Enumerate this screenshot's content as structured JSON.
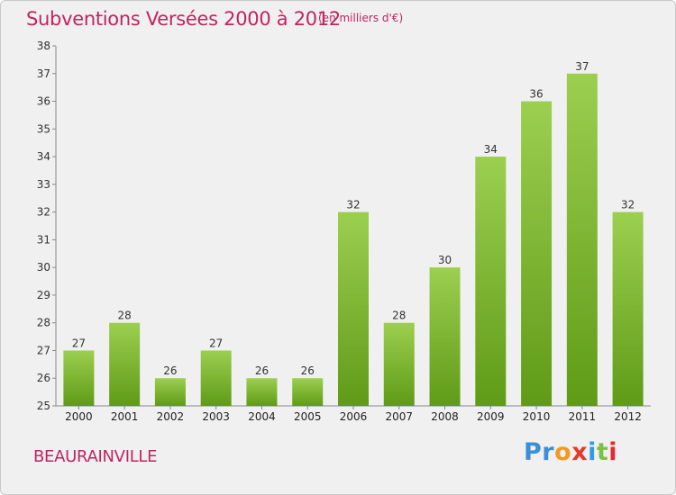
{
  "title": "Subventions Versées 2000 à 2012",
  "unit_note": "(en milliers d'€)",
  "commune": "BEAURAINVILLE",
  "logo": {
    "letters": [
      "P",
      "r",
      "o",
      "x",
      "i",
      "t",
      "i"
    ],
    "colors": [
      "#3b8fd6",
      "#3b8fd6",
      "#f29a1f",
      "#e53a2a",
      "#2f9be0",
      "#7cc242",
      "#e8262f"
    ]
  },
  "colors": {
    "bar_top": "#9ccf4f",
    "bar_bottom": "#5f9b17",
    "title": "#c0245f"
  },
  "chart_data": {
    "type": "bar",
    "title": "Subventions Versées 2000 à 2012",
    "xlabel": "",
    "ylabel": "",
    "categories": [
      "2000",
      "2001",
      "2002",
      "2003",
      "2004",
      "2005",
      "2006",
      "2007",
      "2008",
      "2009",
      "2010",
      "2011",
      "2012"
    ],
    "values": [
      27,
      28,
      26,
      27,
      26,
      26,
      32,
      28,
      30,
      34,
      36,
      37,
      32
    ],
    "ylim": [
      25,
      38
    ],
    "yticks": [
      "25",
      "26",
      "27",
      "28",
      "29",
      "30",
      "31",
      "32",
      "33",
      "34",
      "35",
      "36",
      "37",
      "38"
    ],
    "grid": false
  }
}
